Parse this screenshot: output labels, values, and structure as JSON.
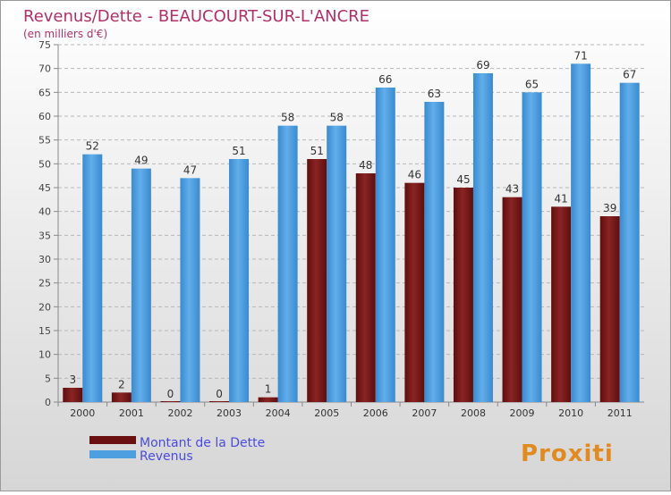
{
  "chart_data": {
    "type": "bar",
    "title": "Revenus/Dette - BEAUCOURT-SUR-L'ANCRE",
    "subtitle": "(en milliers d'€)",
    "categories": [
      "2000",
      "2001",
      "2002",
      "2003",
      "2004",
      "2005",
      "2006",
      "2007",
      "2008",
      "2009",
      "2010",
      "2011"
    ],
    "series": [
      {
        "name": "Montant de la Dette",
        "color": "#7a1515",
        "values": [
          3,
          2,
          0,
          0,
          1,
          51,
          48,
          46,
          45,
          43,
          41,
          39
        ]
      },
      {
        "name": "Revenus",
        "color": "#4e9fe0",
        "values": [
          52,
          49,
          47,
          51,
          58,
          58,
          66,
          63,
          69,
          65,
          71,
          67
        ]
      }
    ],
    "ylim": [
      0,
      75
    ],
    "yticks": [
      0,
      5,
      10,
      15,
      20,
      25,
      30,
      35,
      40,
      45,
      50,
      55,
      60,
      65,
      70,
      75
    ],
    "grid": true,
    "legend": "bottom-left",
    "xlabel": "",
    "ylabel": ""
  },
  "brand": {
    "logo_text": "Proxiti"
  },
  "colors": {
    "title": "#b0306a",
    "background_top": "#ffffff",
    "background_bottom": "#d8d8d8",
    "legend_text": "#4a4ae0"
  }
}
